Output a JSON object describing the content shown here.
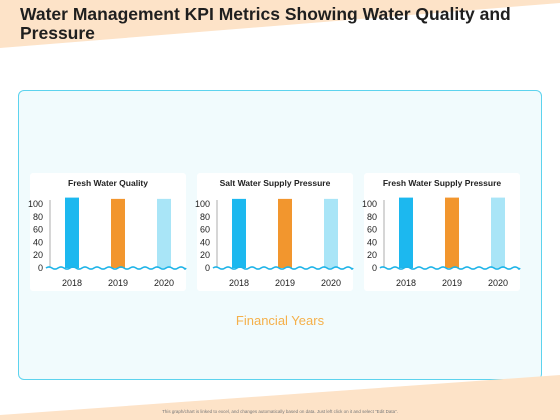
{
  "header": {
    "title": "Water Management KPI Metrics Showing Water Quality and Pressure"
  },
  "footer": {
    "axis_caption": "Financial Years",
    "note": "This graph/chart is linked to excel, and changes automatically based on data. Just left click on it and select “Edit Data”."
  },
  "colors": {
    "accent_band": "#fde3c8",
    "panel_border": "#5dd3ee",
    "wave": "#1fb4e8"
  },
  "chart_data": [
    {
      "type": "bar",
      "title": "Fresh Water Quality",
      "categories": [
        "2018",
        "2019",
        "2020"
      ],
      "values": [
        110,
        108,
        108
      ],
      "colors": [
        "#1cb8ef",
        "#f2962e",
        "#a9e5f7"
      ],
      "ylim": [
        0,
        100
      ],
      "yticks": [
        "0",
        "20",
        "40",
        "60",
        "80",
        "100"
      ],
      "grid": false
    },
    {
      "type": "bar",
      "title": "Salt Water Supply Pressure",
      "categories": [
        "2018",
        "2019",
        "2020"
      ],
      "values": [
        108,
        108,
        108
      ],
      "colors": [
        "#1cb8ef",
        "#f2962e",
        "#a9e5f7"
      ],
      "ylim": [
        0,
        100
      ],
      "yticks": [
        "0",
        "20",
        "40",
        "60",
        "80",
        "100"
      ],
      "grid": false
    },
    {
      "type": "bar",
      "title": "Fresh Water Supply Pressure",
      "categories": [
        "2018",
        "2019",
        "2020"
      ],
      "values": [
        110,
        110,
        110
      ],
      "colors": [
        "#1cb8ef",
        "#f2962e",
        "#a9e5f7"
      ],
      "ylim": [
        0,
        100
      ],
      "yticks": [
        "0",
        "20",
        "40",
        "60",
        "80",
        "100"
      ],
      "grid": false
    }
  ]
}
